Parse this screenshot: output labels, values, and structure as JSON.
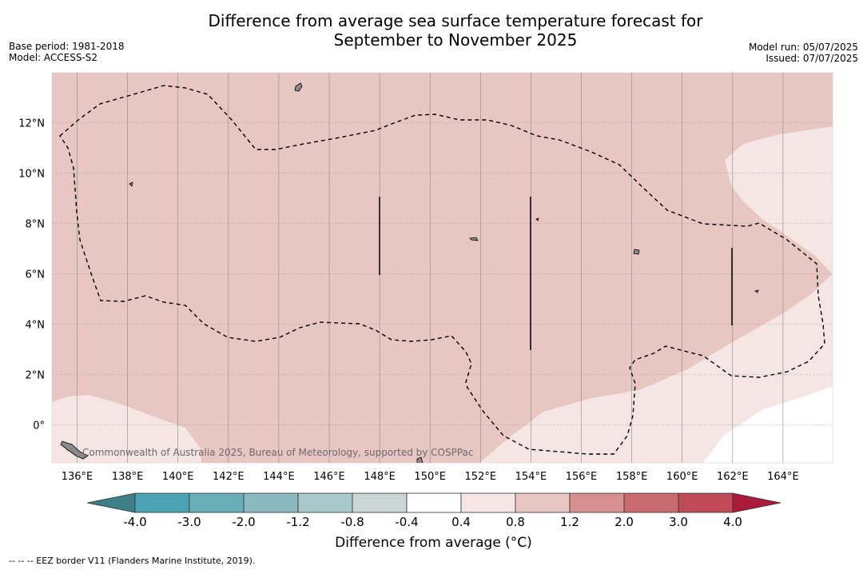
{
  "header": {
    "title_line1": "Difference from average sea surface temperature forecast for",
    "title_line2": "September to November 2025",
    "base_period": "Base period: 1981-2018",
    "model": "Model: ACCESS-S2",
    "model_run": "Model run: 05/07/2025",
    "issued": "Issued: 07/07/2025"
  },
  "map": {
    "lon_labels": [
      "136°E",
      "138°E",
      "140°E",
      "142°E",
      "144°E",
      "146°E",
      "148°E",
      "150°E",
      "152°E",
      "154°E",
      "156°E",
      "158°E",
      "160°E",
      "162°E",
      "164°E"
    ],
    "lat_labels": [
      "12°N",
      "10°N",
      "8°N",
      "6°N",
      "4°N",
      "2°N",
      "0°"
    ],
    "credit": "Commonwealth of Australia 2025, Bureau of Meteorology, supported by COSPPac",
    "colors": {
      "band_0.4_0.8": "#f5e6e4",
      "band_0.8_1.2": "#e8c6c2",
      "land": "#8a8a8a",
      "gridline": "#999999"
    }
  },
  "colorbar": {
    "ticks": [
      "-4.0",
      "-3.0",
      "-2.0",
      "-1.2",
      "-0.8",
      "-0.4",
      "0.4",
      "0.8",
      "1.2",
      "2.0",
      "3.0",
      "4.0"
    ],
    "colors": [
      "#4aa3b4",
      "#6aaeba",
      "#8ab9c1",
      "#a9c8cb",
      "#cbd5d6",
      "#ffffff",
      "#f5e6e4",
      "#e8c6c2",
      "#d5908f",
      "#c96a70",
      "#c04a58"
    ],
    "under_color": "#3d7f86",
    "over_color": "#ac1a3a",
    "label": "Difference from average (°C)"
  },
  "footnote": "--  --  -- EEZ border V11 (Flanders Marine Institute, 2019)."
}
